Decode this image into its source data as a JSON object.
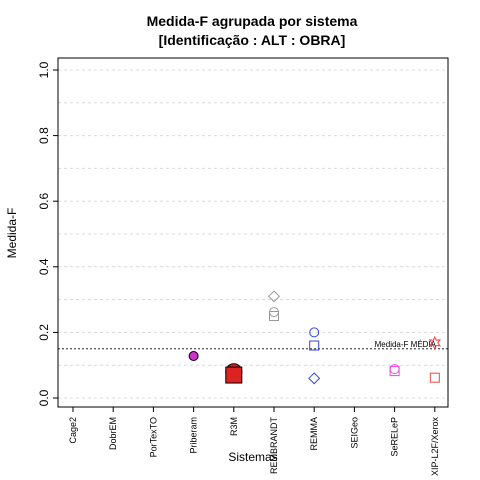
{
  "chart_data": {
    "type": "scatter",
    "title": "Medida-F agrupada por sistema",
    "subtitle": "[Identificação : ALT : OBRA]",
    "xlabel": "Sistemas",
    "ylabel": "Medida-F",
    "ylim": [
      0,
      1
    ],
    "yticks": [
      "0.0",
      "0.2",
      "0.4",
      "0.6",
      "0.8",
      "1.0"
    ],
    "grid": true,
    "categories": [
      "Cage2",
      "DobrEM",
      "PorTexTO",
      "Priberam",
      "R3M",
      "REMBRANDT",
      "REMMA",
      "SEIGeo",
      "SeRELeP",
      "XIP-L2F/Xerox"
    ],
    "reference_line": {
      "label": "Medida-F MÉDIA",
      "value": 0.15
    },
    "points": [
      {
        "category": "Priberam",
        "y": 0.128,
        "shape": "circle-filled",
        "color": "#cc33cc"
      },
      {
        "category": "R3M",
        "y": 0.08,
        "shape": "circle-filled",
        "color": "#dd2222",
        "size": "large"
      },
      {
        "category": "R3M",
        "y": 0.07,
        "shape": "square-filled",
        "color": "#dd2222",
        "size": "large"
      },
      {
        "category": "REMBRANDT",
        "y": 0.31,
        "shape": "diamond",
        "color": "#999999"
      },
      {
        "category": "REMBRANDT",
        "y": 0.262,
        "shape": "circle",
        "color": "#999999"
      },
      {
        "category": "REMBRANDT",
        "y": 0.25,
        "shape": "square",
        "color": "#999999"
      },
      {
        "category": "REMMA",
        "y": 0.2,
        "shape": "circle",
        "color": "#3344dd"
      },
      {
        "category": "REMMA",
        "y": 0.16,
        "shape": "square",
        "color": "#3344dd"
      },
      {
        "category": "REMMA",
        "y": 0.06,
        "shape": "diamond",
        "color": "#3344dd"
      },
      {
        "category": "SeRELeP",
        "y": 0.088,
        "shape": "circle",
        "color": "#ee44ee"
      },
      {
        "category": "SeRELeP",
        "y": 0.082,
        "shape": "square",
        "color": "#ee44ee"
      },
      {
        "category": "XIP-L2F/Xerox",
        "y": 0.168,
        "shape": "star",
        "color": "#ee4444"
      },
      {
        "category": "XIP-L2F/Xerox",
        "y": 0.062,
        "shape": "square",
        "color": "#ee4444"
      }
    ]
  }
}
